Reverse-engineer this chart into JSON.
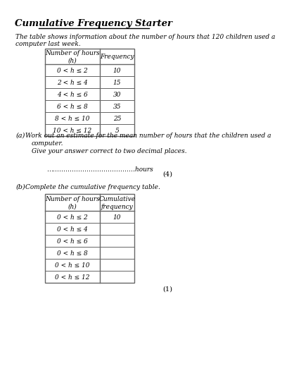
{
  "title": "Cumulative Frequency Starter",
  "intro_text": "The table shows information about the number of hours that 120 children used a\ncomputer last week.",
  "table1_headers": [
    "Number of hours\n(h)",
    "Frequency"
  ],
  "table1_rows": [
    [
      "0 < h ≤ 2",
      "10"
    ],
    [
      "2 < h ≤ 4",
      "15"
    ],
    [
      "4 < h ≤ 6",
      "30"
    ],
    [
      "6 < h ≤ 8",
      "35"
    ],
    [
      "8 < h ≤ 10",
      "25"
    ],
    [
      "10 < h ≤ 12",
      "5"
    ]
  ],
  "part_a_label": "(a)",
  "part_a_text1": "Work out an estimate for the mean number of hours that the children used a",
  "part_a_text2": "computer.",
  "part_a_text3": "Give your answer correct to two decimal places.",
  "answer_line": "……………………………………hours",
  "marks_a": "(4)",
  "part_b_label": "(b)",
  "part_b_text": "Complete the cumulative frequency table.",
  "table2_headers": [
    "Number of hours\n(h)",
    "Cumulative\nfrequency"
  ],
  "table2_rows": [
    [
      "0 < h ≤ 2",
      "10"
    ],
    [
      "0 < h ≤ 4",
      ""
    ],
    [
      "0 < h ≤ 6",
      ""
    ],
    [
      "0 < h ≤ 8",
      ""
    ],
    [
      "0 < h ≤ 10",
      ""
    ],
    [
      "0 < h ≤ 12",
      ""
    ]
  ],
  "marks_b": "(1)",
  "bg_color": "#ffffff",
  "text_color": "#000000",
  "table_border_color": "#666666"
}
